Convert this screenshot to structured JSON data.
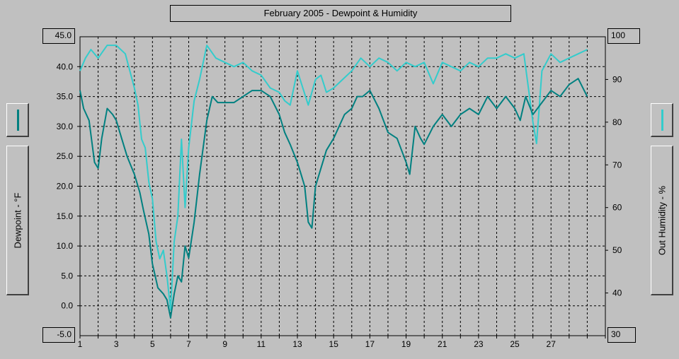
{
  "title": "February 2005 - Dewpoint & Humidity",
  "left_axis": {
    "label": "Dewpoint - °F",
    "max_label": "45.0",
    "min_label": "-5.0"
  },
  "right_axis": {
    "label": "Out Humidity - %",
    "max_label": "100",
    "min_label": "30"
  },
  "colors": {
    "dewpoint": "#008080",
    "humidity": "#33cccc",
    "background": "#c0c0c0",
    "grid": "#000000"
  },
  "chart_data": {
    "type": "line",
    "title": "February 2005 - Dewpoint & Humidity",
    "xlabel": "",
    "ylabel": "Dewpoint - °F",
    "y2label": "Out Humidity - %",
    "xlim": [
      1,
      30
    ],
    "ylim": [
      -5,
      45
    ],
    "y2lim": [
      30,
      100
    ],
    "x_ticks": [
      "1",
      "3",
      "5",
      "7",
      "9",
      "11",
      "13",
      "15",
      "17",
      "19",
      "21",
      "23",
      "25",
      "27"
    ],
    "y_ticks": [
      "40.0",
      "35.0",
      "30.0",
      "25.0",
      "20.0",
      "15.0",
      "10.0",
      "5.0",
      "0.0"
    ],
    "y2_ticks": [
      "90",
      "80",
      "70",
      "60",
      "50",
      "40"
    ],
    "grid": true,
    "series": [
      {
        "name": "Dewpoint",
        "axis": "left",
        "color": "#008080",
        "x": [
          1,
          1.2,
          1.5,
          1.8,
          2.0,
          2.2,
          2.5,
          2.8,
          3.0,
          3.3,
          3.6,
          4.0,
          4.3,
          4.5,
          4.8,
          5.0,
          5.3,
          5.6,
          5.8,
          6.0,
          6.2,
          6.4,
          6.6,
          6.8,
          7.0,
          7.3,
          7.6,
          8.0,
          8.3,
          8.6,
          9.0,
          9.5,
          10.0,
          10.5,
          11.0,
          11.5,
          12.0,
          12.3,
          12.6,
          13.0,
          13.2,
          13.4,
          13.6,
          13.8,
          14.0,
          14.3,
          14.6,
          15.0,
          15.3,
          15.6,
          16.0,
          16.3,
          16.6,
          17.0,
          17.5,
          18.0,
          18.5,
          19.0,
          19.2,
          19.5,
          19.8,
          20.0,
          20.5,
          21.0,
          21.5,
          22.0,
          22.5,
          23.0,
          23.5,
          24.0,
          24.5,
          25.0,
          25.3,
          25.6,
          26.0,
          26.5,
          27.0,
          27.5,
          28.0,
          28.5,
          29.0
        ],
        "y": [
          36,
          33,
          31,
          24,
          23,
          28,
          33,
          32,
          31,
          28,
          25,
          22,
          19,
          16,
          12,
          7,
          3,
          2,
          1,
          -2,
          2,
          5,
          4,
          10,
          8,
          14,
          22,
          31,
          35,
          34,
          34,
          34,
          35,
          36,
          36,
          35,
          32,
          29,
          27,
          24,
          22,
          20,
          14,
          13,
          20,
          23,
          26,
          28,
          30,
          32,
          33,
          35,
          35,
          36,
          33,
          29,
          28,
          24,
          22,
          30,
          28,
          27,
          30,
          32,
          30,
          32,
          33,
          32,
          35,
          33,
          35,
          33,
          31,
          35,
          32,
          34,
          36,
          35,
          37,
          38,
          35
        ]
      },
      {
        "name": "Out Humidity",
        "axis": "right",
        "color": "#33cccc",
        "x": [
          1,
          1.3,
          1.6,
          2.0,
          2.5,
          3.0,
          3.5,
          4.0,
          4.2,
          4.4,
          4.6,
          4.8,
          5.0,
          5.2,
          5.4,
          5.6,
          5.8,
          6.0,
          6.2,
          6.4,
          6.6,
          6.8,
          7.0,
          7.3,
          7.6,
          8.0,
          8.5,
          9.0,
          9.5,
          10.0,
          10.5,
          11.0,
          11.5,
          12.0,
          12.3,
          12.6,
          13.0,
          13.3,
          13.6,
          14.0,
          14.3,
          14.6,
          15.0,
          15.5,
          16.0,
          16.5,
          17.0,
          17.5,
          18.0,
          18.5,
          19.0,
          19.5,
          20.0,
          20.5,
          21.0,
          21.5,
          22.0,
          22.5,
          23.0,
          23.5,
          24.0,
          24.5,
          25.0,
          25.5,
          26.0,
          26.2,
          26.5,
          27.0,
          27.5,
          28.0,
          28.5,
          29.0
        ],
        "y": [
          92,
          95,
          97,
          95,
          98,
          98,
          96,
          88,
          84,
          76,
          74,
          66,
          62,
          52,
          48,
          50,
          44,
          36,
          52,
          58,
          76,
          60,
          74,
          85,
          90,
          98,
          95,
          94,
          93,
          94,
          92,
          91,
          88,
          87,
          85,
          84,
          92,
          88,
          84,
          90,
          91,
          87,
          88,
          90,
          92,
          95,
          93,
          95,
          94,
          92,
          94,
          93,
          94,
          89,
          94,
          93,
          92,
          94,
          93,
          95,
          95,
          96,
          95,
          96,
          80,
          75,
          92,
          96,
          94,
          95,
          96,
          97
        ]
      }
    ]
  }
}
